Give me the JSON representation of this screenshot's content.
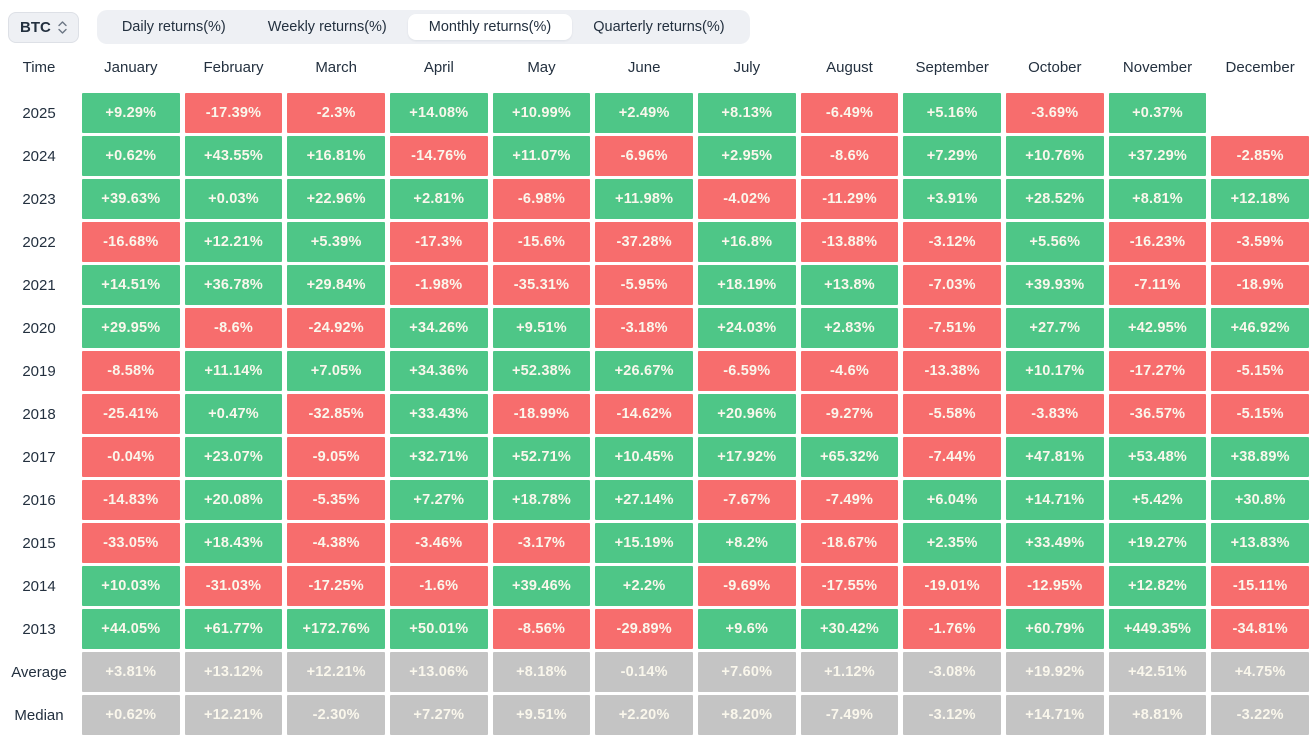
{
  "controls": {
    "symbol_selector": {
      "label": "BTC",
      "icon": "updown-chevron-icon"
    },
    "tabs": [
      {
        "label": "Daily returns(%)",
        "active": false
      },
      {
        "label": "Weekly returns(%)",
        "active": false
      },
      {
        "label": "Monthly returns(%)",
        "active": true
      },
      {
        "label": "Quarterly returns(%)",
        "active": false
      }
    ]
  },
  "table": {
    "time_header": "Time",
    "months": [
      "January",
      "February",
      "March",
      "April",
      "May",
      "June",
      "July",
      "August",
      "September",
      "October",
      "November",
      "December"
    ],
    "rows": [
      {
        "label": "2025",
        "summary": false,
        "cells": [
          "+9.29%",
          "-17.39%",
          "-2.3%",
          "+14.08%",
          "+10.99%",
          "+2.49%",
          "+8.13%",
          "-6.49%",
          "+5.16%",
          "-3.69%",
          "+0.37%",
          ""
        ]
      },
      {
        "label": "2024",
        "summary": false,
        "cells": [
          "+0.62%",
          "+43.55%",
          "+16.81%",
          "-14.76%",
          "+11.07%",
          "-6.96%",
          "+2.95%",
          "-8.6%",
          "+7.29%",
          "+10.76%",
          "+37.29%",
          "-2.85%"
        ]
      },
      {
        "label": "2023",
        "summary": false,
        "cells": [
          "+39.63%",
          "+0.03%",
          "+22.96%",
          "+2.81%",
          "-6.98%",
          "+11.98%",
          "-4.02%",
          "-11.29%",
          "+3.91%",
          "+28.52%",
          "+8.81%",
          "+12.18%"
        ]
      },
      {
        "label": "2022",
        "summary": false,
        "cells": [
          "-16.68%",
          "+12.21%",
          "+5.39%",
          "-17.3%",
          "-15.6%",
          "-37.28%",
          "+16.8%",
          "-13.88%",
          "-3.12%",
          "+5.56%",
          "-16.23%",
          "-3.59%"
        ]
      },
      {
        "label": "2021",
        "summary": false,
        "cells": [
          "+14.51%",
          "+36.78%",
          "+29.84%",
          "-1.98%",
          "-35.31%",
          "-5.95%",
          "+18.19%",
          "+13.8%",
          "-7.03%",
          "+39.93%",
          "-7.11%",
          "-18.9%"
        ]
      },
      {
        "label": "2020",
        "summary": false,
        "cells": [
          "+29.95%",
          "-8.6%",
          "-24.92%",
          "+34.26%",
          "+9.51%",
          "-3.18%",
          "+24.03%",
          "+2.83%",
          "-7.51%",
          "+27.7%",
          "+42.95%",
          "+46.92%"
        ]
      },
      {
        "label": "2019",
        "summary": false,
        "cells": [
          "-8.58%",
          "+11.14%",
          "+7.05%",
          "+34.36%",
          "+52.38%",
          "+26.67%",
          "-6.59%",
          "-4.6%",
          "-13.38%",
          "+10.17%",
          "-17.27%",
          "-5.15%"
        ]
      },
      {
        "label": "2018",
        "summary": false,
        "cells": [
          "-25.41%",
          "+0.47%",
          "-32.85%",
          "+33.43%",
          "-18.99%",
          "-14.62%",
          "+20.96%",
          "-9.27%",
          "-5.58%",
          "-3.83%",
          "-36.57%",
          "-5.15%"
        ]
      },
      {
        "label": "2017",
        "summary": false,
        "cells": [
          "-0.04%",
          "+23.07%",
          "-9.05%",
          "+32.71%",
          "+52.71%",
          "+10.45%",
          "+17.92%",
          "+65.32%",
          "-7.44%",
          "+47.81%",
          "+53.48%",
          "+38.89%"
        ]
      },
      {
        "label": "2016",
        "summary": false,
        "cells": [
          "-14.83%",
          "+20.08%",
          "-5.35%",
          "+7.27%",
          "+18.78%",
          "+27.14%",
          "-7.67%",
          "-7.49%",
          "+6.04%",
          "+14.71%",
          "+5.42%",
          "+30.8%"
        ]
      },
      {
        "label": "2015",
        "summary": false,
        "cells": [
          "-33.05%",
          "+18.43%",
          "-4.38%",
          "-3.46%",
          "-3.17%",
          "+15.19%",
          "+8.2%",
          "-18.67%",
          "+2.35%",
          "+33.49%",
          "+19.27%",
          "+13.83%"
        ]
      },
      {
        "label": "2014",
        "summary": false,
        "cells": [
          "+10.03%",
          "-31.03%",
          "-17.25%",
          "-1.6%",
          "+39.46%",
          "+2.2%",
          "-9.69%",
          "-17.55%",
          "-19.01%",
          "-12.95%",
          "+12.82%",
          "-15.11%"
        ]
      },
      {
        "label": "2013",
        "summary": false,
        "cells": [
          "+44.05%",
          "+61.77%",
          "+172.76%",
          "+50.01%",
          "-8.56%",
          "-29.89%",
          "+9.6%",
          "+30.42%",
          "-1.76%",
          "+60.79%",
          "+449.35%",
          "-34.81%"
        ]
      },
      {
        "label": "Average",
        "summary": true,
        "cells": [
          "+3.81%",
          "+13.12%",
          "+12.21%",
          "+13.06%",
          "+8.18%",
          "-0.14%",
          "+7.60%",
          "+1.12%",
          "-3.08%",
          "+19.92%",
          "+42.51%",
          "+4.75%"
        ]
      },
      {
        "label": "Median",
        "summary": true,
        "cells": [
          "+0.62%",
          "+12.21%",
          "-2.30%",
          "+7.27%",
          "+9.51%",
          "+2.20%",
          "+8.20%",
          "-7.49%",
          "-3.12%",
          "+14.71%",
          "+8.81%",
          "-3.22%"
        ]
      }
    ]
  },
  "colors": {
    "positive": "#4ec687",
    "negative": "#f76d6d",
    "summary": "#c4c4c4",
    "cell_text": "#faf7ec",
    "header_text": "#23303f",
    "tab_bg": "#eef0f4",
    "tab_active_bg": "#ffffff"
  }
}
